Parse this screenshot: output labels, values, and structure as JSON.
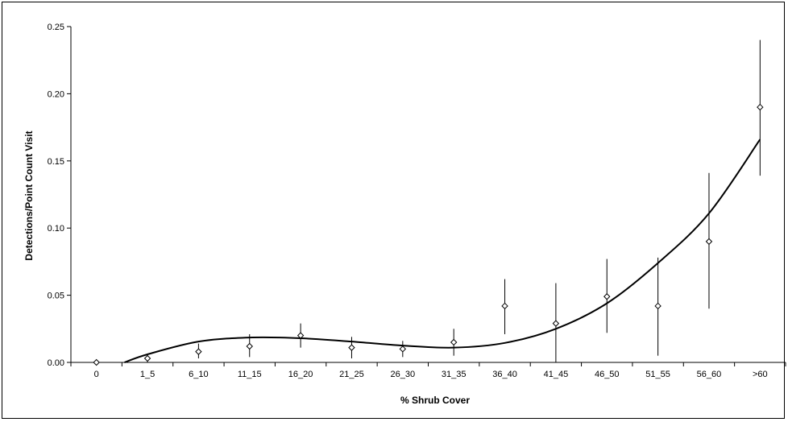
{
  "chart_data": {
    "type": "scatter",
    "xlabel": "% Shrub Cover",
    "ylabel": "Detections/Point Count Visit",
    "categories": [
      "0",
      "1_5",
      "6_10",
      "11_15",
      "16_20",
      "21_25",
      "26_30",
      "31_35",
      "36_40",
      "41_45",
      "46_50",
      "51_55",
      "56_60",
      ">60"
    ],
    "yticks": [
      "0.00",
      "0.05",
      "0.10",
      "0.15",
      "0.20",
      "0.25"
    ],
    "ylim": [
      0,
      0.25
    ],
    "grid": false,
    "legend": "none",
    "series": [
      {
        "values": [
          0.0,
          0.003,
          0.008,
          0.012,
          0.02,
          0.011,
          0.01,
          0.015,
          0.042,
          0.029,
          0.049,
          0.042,
          0.09,
          0.19
        ],
        "error_low": [
          0.0,
          0.0,
          0.003,
          0.004,
          0.011,
          0.003,
          0.004,
          0.005,
          0.021,
          0.0,
          0.022,
          0.005,
          0.04,
          0.139
        ],
        "error_high": [
          0.0,
          0.006,
          0.014,
          0.021,
          0.029,
          0.019,
          0.016,
          0.025,
          0.062,
          0.059,
          0.077,
          0.078,
          0.141,
          0.24
        ],
        "marker": "diamond-open"
      }
    ],
    "trendline": {
      "x": [
        0.55,
        1.0,
        2.0,
        3.0,
        4.0,
        5.0,
        6.0,
        7.0,
        8.0,
        9.0,
        10.0,
        11.0,
        12.0,
        13.0
      ],
      "y": [
        0.0,
        0.006,
        0.0155,
        0.0185,
        0.018,
        0.0155,
        0.0125,
        0.011,
        0.0145,
        0.025,
        0.044,
        0.074,
        0.111,
        0.166
      ]
    },
    "colors": {
      "line": "#000000",
      "marker_fill": "#ffffff",
      "marker_stroke": "#000000"
    }
  }
}
